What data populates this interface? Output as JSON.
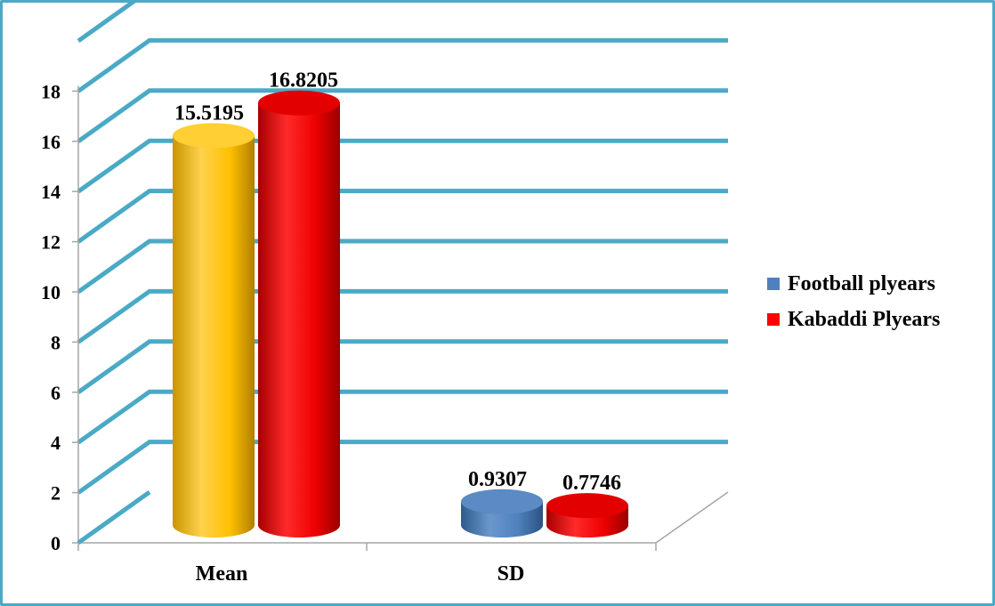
{
  "chart_data": {
    "type": "bar",
    "title": "",
    "xlabel": "",
    "ylabel": "",
    "categories": [
      "Mean",
      "SD"
    ],
    "series": [
      {
        "name": "Football plyears",
        "values": [
          15.5195,
          0.9307
        ],
        "value_labels": [
          "15.5195",
          "0.9307"
        ],
        "color": "#ffc000",
        "legend_color": "#4f81bd"
      },
      {
        "name": "Kabaddi Plyears",
        "values": [
          16.8205,
          0.7746
        ],
        "value_labels": [
          "16.8205",
          "0.7746"
        ],
        "color": "#ff0000",
        "legend_color": "#ff0000"
      }
    ],
    "point_colors": [
      [
        "#ffc000",
        "#4f81bd"
      ],
      [
        "#ff0000",
        "#ff0000"
      ]
    ],
    "yticks": [
      "0",
      "2",
      "4",
      "6",
      "8",
      "10",
      "12",
      "14",
      "16",
      "18"
    ],
    "ylim": [
      0,
      20
    ],
    "grid": true,
    "grid_color": "#4aaac6",
    "legend_position": "right",
    "style": "3d-cylinder"
  }
}
